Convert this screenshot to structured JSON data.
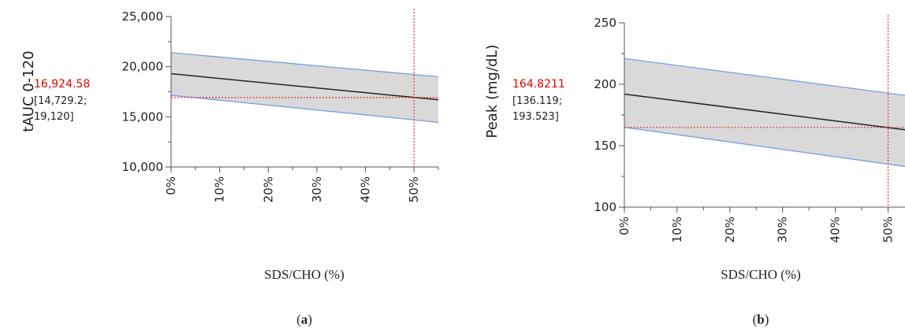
{
  "colors": {
    "band_fill": "#d9d9d9",
    "bound_line": "#7b9fe0",
    "fit_line": "#222222",
    "reference_line": "#e0202a",
    "annotation_value": "#e00000"
  },
  "chart_data": [
    {
      "type": "line",
      "panel_label_letter": "a",
      "ylabel": "tAUC 0-120",
      "xlabel": "SDS/CHO (%)",
      "x_ticks": [
        "0%",
        "10%",
        "20%",
        "30%",
        "40%",
        "50%"
      ],
      "y_ticks": [
        "10,000",
        "15,000",
        "20,000",
        "25,000"
      ],
      "xlim": [
        0,
        55
      ],
      "ylim": [
        10000,
        25000
      ],
      "y_minor_step": 2500,
      "x_minor_step": 5,
      "x": [
        0,
        55
      ],
      "series": [
        {
          "role": "fit",
          "values": [
            19300,
            16700
          ]
        },
        {
          "role": "upper",
          "values": [
            21400,
            19000
          ]
        },
        {
          "role": "lower",
          "values": [
            17150,
            14450
          ]
        }
      ],
      "reference": {
        "x": 50,
        "y": 16924.58
      },
      "annotation": {
        "value": "16,924.58",
        "ci_line1": "[14,729.2;",
        "ci_line2": "19,120]"
      }
    },
    {
      "type": "line",
      "panel_label_letter": "b",
      "ylabel": "Peak (mg/dL)",
      "xlabel": "SDS/CHO (%)",
      "x_ticks": [
        "0%",
        "10%",
        "20%",
        "30%",
        "40%",
        "50%"
      ],
      "y_ticks": [
        "100",
        "150",
        "200",
        "250"
      ],
      "xlim": [
        0,
        55
      ],
      "ylim": [
        100,
        250
      ],
      "y_minor_step": 25,
      "x_minor_step": 5,
      "x": [
        0,
        55
      ],
      "series": [
        {
          "role": "fit",
          "values": [
            192,
            162
          ]
        },
        {
          "role": "upper",
          "values": [
            221,
            190
          ]
        },
        {
          "role": "lower",
          "values": [
            165,
            132
          ]
        }
      ],
      "reference": {
        "x": 50,
        "y": 164.8211
      },
      "annotation": {
        "value": "164.8211",
        "ci_line1": "[136.119;",
        "ci_line2": "193.523]"
      }
    }
  ]
}
